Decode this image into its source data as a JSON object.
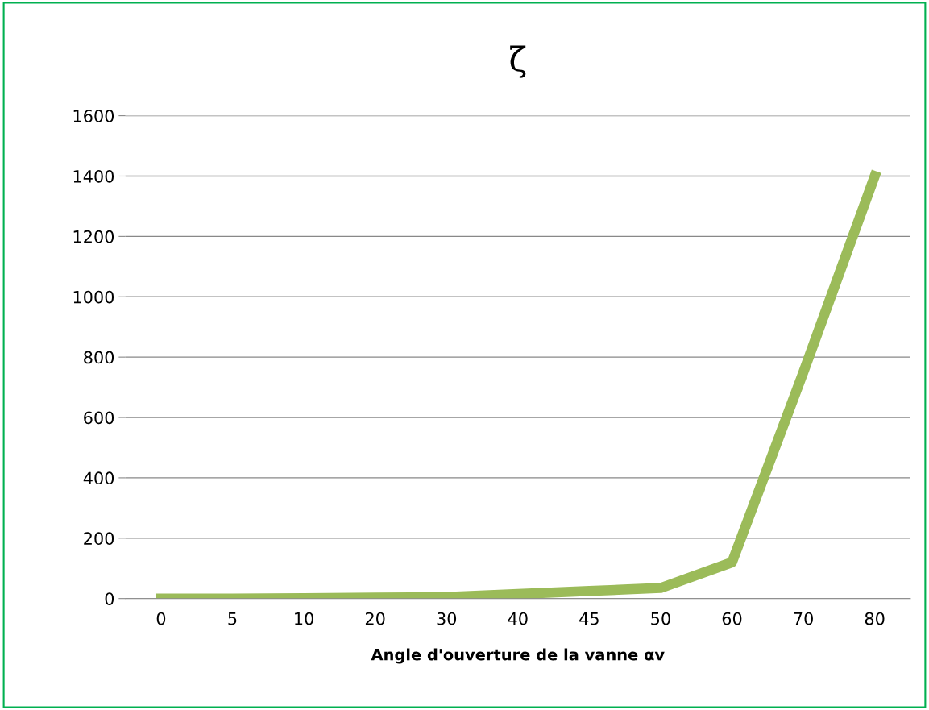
{
  "chart_data": {
    "type": "line",
    "title": "ζ",
    "xlabel": "Angle d'ouverture de la vanne αv",
    "categories": [
      "0",
      "5",
      "10",
      "20",
      "30",
      "40",
      "45",
      "50",
      "60",
      "70",
      "80"
    ],
    "series": [
      {
        "color": "#9bbb59",
        "values": [
          0,
          0,
          1,
          3,
          5,
          15,
          25,
          35,
          120,
          750,
          1400
        ]
      }
    ],
    "ylim": [
      0,
      1600
    ],
    "yticks": [
      0,
      200,
      400,
      600,
      800,
      1000,
      1200,
      1400,
      1600
    ],
    "grid": "y",
    "line_style": "solid",
    "legend": false
  }
}
